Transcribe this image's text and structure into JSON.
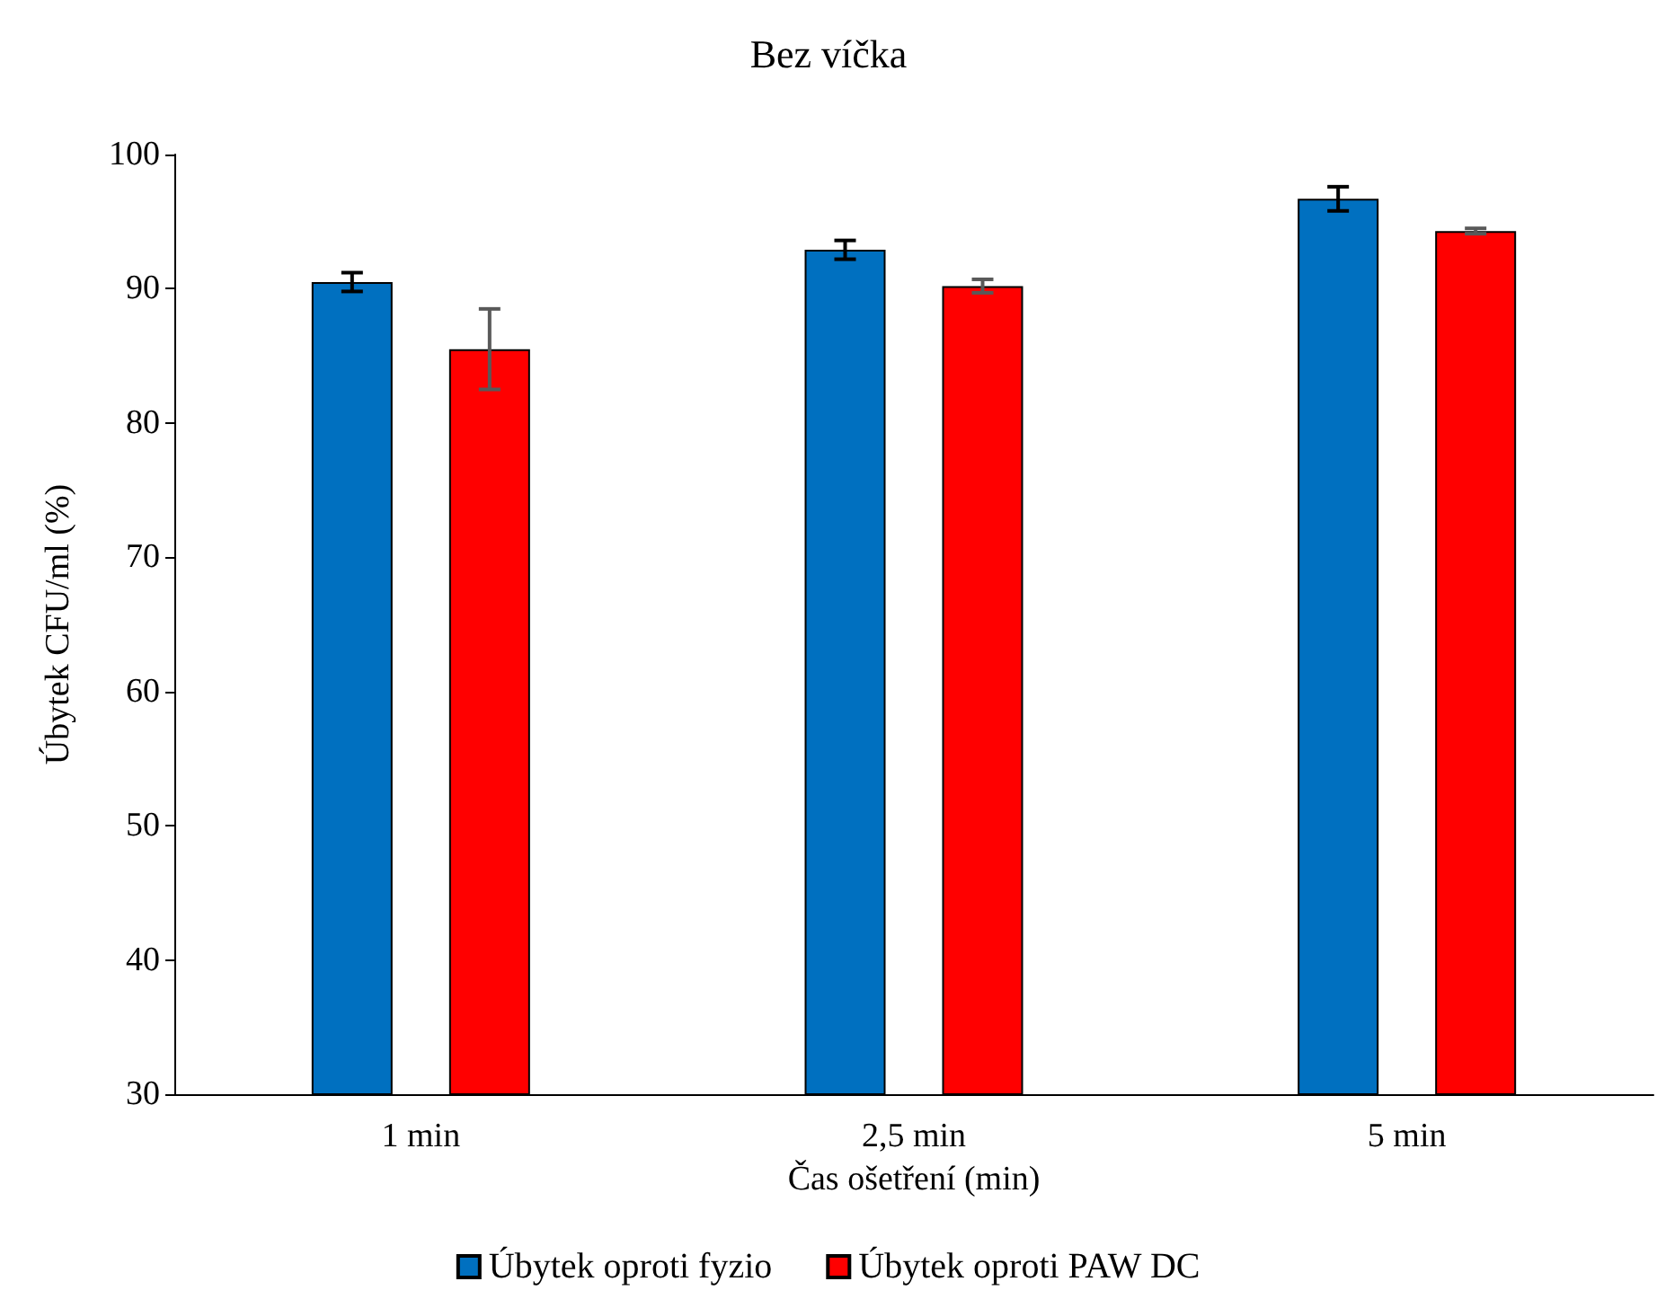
{
  "chart_data": {
    "type": "bar",
    "title": "Bez víčka",
    "xlabel": "Čas ošetření (min)",
    "ylabel": "Úbytek CFU/ml (%)",
    "categories": [
      "1 min",
      "2,5 min",
      "5 min"
    ],
    "series": [
      {
        "name": "Úbytek oproti fyzio",
        "color": "#0070c0",
        "values": [
          90.5,
          92.9,
          96.7
        ],
        "errors": [
          0.7,
          0.7,
          0.9
        ]
      },
      {
        "name": "Úbytek oproti PAW DC",
        "color": "#ff0000",
        "values": [
          85.5,
          90.2,
          94.3
        ],
        "errors": [
          3.0,
          0.5,
          0.2
        ]
      }
    ],
    "ylim": [
      30,
      100
    ],
    "yticks": [
      30,
      40,
      50,
      60,
      70,
      80,
      90,
      100
    ],
    "grid": false,
    "legend": "bottom"
  }
}
